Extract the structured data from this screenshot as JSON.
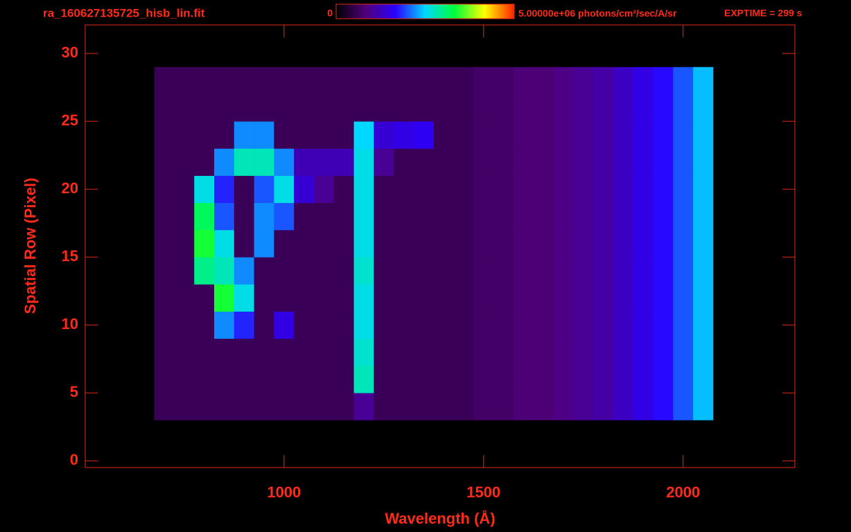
{
  "chart_data": {
    "type": "heatmap",
    "title": "ra_160627135725_hisb_lin.fit",
    "exposure": "EXPTIME = 299 s",
    "x_label": "Wavelength (Å)",
    "y_label": "Spatial Row (Pixel)",
    "xlim": [
      502,
      2280
    ],
    "ylim": [
      -0.5,
      32.1
    ],
    "xticks": [
      1000,
      1500,
      2000
    ],
    "yticks": [
      0,
      5,
      10,
      15,
      20,
      25,
      30
    ],
    "colorbar": {
      "zlim": [
        0,
        5000000
      ],
      "ticks": [
        0,
        {
          "value": 5000000,
          "label": "5.00000e+06"
        }
      ],
      "unit": "photons/cm²/sec/A/sr",
      "colormap": [
        "#000000",
        "#50007a",
        "#2a00ff",
        "#00d8ff",
        "#00ff3a",
        "#ffff00",
        "#ff2000"
      ]
    },
    "x": [
      700,
      750,
      800,
      850,
      900,
      950,
      1000,
      1050,
      1100,
      1150,
      1200,
      1250,
      1300,
      1350,
      1400,
      1450,
      1500,
      1550,
      1600,
      1650,
      1700,
      1750,
      1800,
      1850,
      1900,
      1950,
      2000,
      2050
    ],
    "y": [
      4,
      6,
      8,
      10,
      12,
      14,
      16,
      18,
      20,
      22,
      24,
      26,
      28
    ],
    "z": [
      [
        600000,
        600000,
        600000,
        600000,
        600000,
        600000,
        600000,
        600000,
        600000,
        600000,
        1000000,
        600000,
        600000,
        600000,
        600000,
        600000,
        700000,
        700000,
        800000,
        800000,
        900000,
        1000000,
        1100000,
        1300000,
        1500000,
        1700000,
        2000000,
        2400000
      ],
      [
        600000,
        600000,
        600000,
        600000,
        600000,
        600000,
        600000,
        600000,
        600000,
        600000,
        2800000,
        600000,
        600000,
        600000,
        600000,
        600000,
        700000,
        700000,
        800000,
        800000,
        900000,
        1000000,
        1100000,
        1300000,
        1500000,
        1700000,
        2000000,
        2400000
      ],
      [
        600000,
        600000,
        600000,
        600000,
        600000,
        600000,
        600000,
        600000,
        600000,
        600000,
        2700000,
        600000,
        600000,
        600000,
        600000,
        600000,
        700000,
        700000,
        800000,
        800000,
        900000,
        1000000,
        1100000,
        1300000,
        1500000,
        1700000,
        2000000,
        2400000
      ],
      [
        600000,
        600000,
        600000,
        2200000,
        1800000,
        600000,
        1500000,
        600000,
        600000,
        600000,
        2600000,
        600000,
        600000,
        600000,
        600000,
        600000,
        700000,
        700000,
        800000,
        800000,
        900000,
        1000000,
        1100000,
        1300000,
        1500000,
        1700000,
        2000000,
        2400000
      ],
      [
        600000,
        600000,
        600000,
        3400000,
        2600000,
        600000,
        600000,
        600000,
        600000,
        600000,
        2600000,
        600000,
        600000,
        600000,
        600000,
        600000,
        700000,
        700000,
        800000,
        800000,
        900000,
        1000000,
        1100000,
        1300000,
        1500000,
        1700000,
        2000000,
        2400000
      ],
      [
        600000,
        600000,
        3000000,
        2800000,
        2200000,
        600000,
        600000,
        600000,
        600000,
        600000,
        2700000,
        600000,
        600000,
        600000,
        600000,
        600000,
        700000,
        700000,
        800000,
        800000,
        900000,
        1000000,
        1100000,
        1300000,
        1500000,
        1700000,
        2000000,
        2400000
      ],
      [
        600000,
        600000,
        3400000,
        2600000,
        600000,
        2200000,
        600000,
        600000,
        600000,
        600000,
        2600000,
        600000,
        600000,
        600000,
        600000,
        600000,
        700000,
        700000,
        800000,
        800000,
        900000,
        1000000,
        1100000,
        1300000,
        1500000,
        1700000,
        2000000,
        2400000
      ],
      [
        600000,
        600000,
        3200000,
        2000000,
        600000,
        2200000,
        2000000,
        600000,
        600000,
        600000,
        2600000,
        600000,
        600000,
        600000,
        600000,
        600000,
        700000,
        700000,
        800000,
        800000,
        900000,
        1000000,
        1100000,
        1300000,
        1500000,
        1700000,
        2000000,
        2400000
      ],
      [
        600000,
        600000,
        2600000,
        1800000,
        600000,
        2000000,
        2600000,
        1400000,
        1000000,
        600000,
        2600000,
        600000,
        600000,
        600000,
        600000,
        600000,
        700000,
        700000,
        800000,
        800000,
        900000,
        1000000,
        1100000,
        1300000,
        1500000,
        1700000,
        2000000,
        2400000
      ],
      [
        600000,
        600000,
        600000,
        2200000,
        2800000,
        2800000,
        2200000,
        1200000,
        1200000,
        1200000,
        2600000,
        1000000,
        600000,
        600000,
        600000,
        600000,
        700000,
        700000,
        800000,
        800000,
        900000,
        1000000,
        1100000,
        1300000,
        1500000,
        1700000,
        2000000,
        2400000
      ],
      [
        600000,
        600000,
        600000,
        600000,
        2200000,
        2200000,
        600000,
        600000,
        600000,
        600000,
        2500000,
        1400000,
        1500000,
        1600000,
        600000,
        600000,
        700000,
        700000,
        800000,
        800000,
        900000,
        1000000,
        1100000,
        1300000,
        1500000,
        1700000,
        2000000,
        2400000
      ],
      [
        600000,
        600000,
        600000,
        600000,
        600000,
        600000,
        600000,
        600000,
        600000,
        600000,
        600000,
        600000,
        600000,
        600000,
        600000,
        600000,
        700000,
        700000,
        800000,
        800000,
        900000,
        1000000,
        1100000,
        1300000,
        1500000,
        1700000,
        2000000,
        2400000
      ],
      [
        600000,
        600000,
        600000,
        600000,
        600000,
        600000,
        600000,
        600000,
        600000,
        600000,
        600000,
        600000,
        600000,
        600000,
        600000,
        600000,
        700000,
        700000,
        800000,
        800000,
        900000,
        1000000,
        1100000,
        1300000,
        1500000,
        1700000,
        2000000,
        2400000
      ]
    ]
  }
}
